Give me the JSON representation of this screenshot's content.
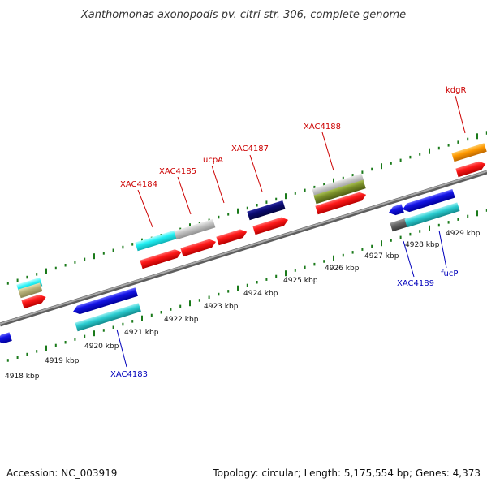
{
  "title": "Xanthomonas axonopodis pv. citri str. 306, complete genome",
  "footer": {
    "accession": "Accession: NC_003919",
    "summary": "Topology: circular; Length: 5,175,554 bp; Genes: 4,373"
  },
  "kbp_labels": [
    "4918 kbp",
    "4919 kbp",
    "4920 kbp",
    "4921 kbp",
    "4922 kbp",
    "4923 kbp",
    "4924 kbp",
    "4925 kbp",
    "4926 kbp",
    "4927 kbp",
    "4928 kbp",
    "4929 kbp"
  ],
  "gene_labels": {
    "XAC4183": "XAC4183",
    "XAC4184": "XAC4184",
    "XAC4185": "XAC4185",
    "ucpA": "ucpA",
    "XAC4187": "XAC4187",
    "XAC4188": "XAC4188",
    "kdgR": "kdgR",
    "XAC4189": "XAC4189",
    "fucP": "fucP"
  },
  "colors": {
    "backbone": "#8c8c8c",
    "tick": "#1a7a1a",
    "cds": "#ff0000",
    "gene_blue": "#1010dd",
    "cyan": "#22c4c8",
    "navy": "#0a0a6e",
    "grey": "#c0c0c0",
    "olive": "#7a8f2a",
    "orange": "#ff9900",
    "khaki": "#b8b27a",
    "dark_grey": "#666666",
    "label_red": "#cc0000",
    "label_blue": "#0000bb"
  }
}
